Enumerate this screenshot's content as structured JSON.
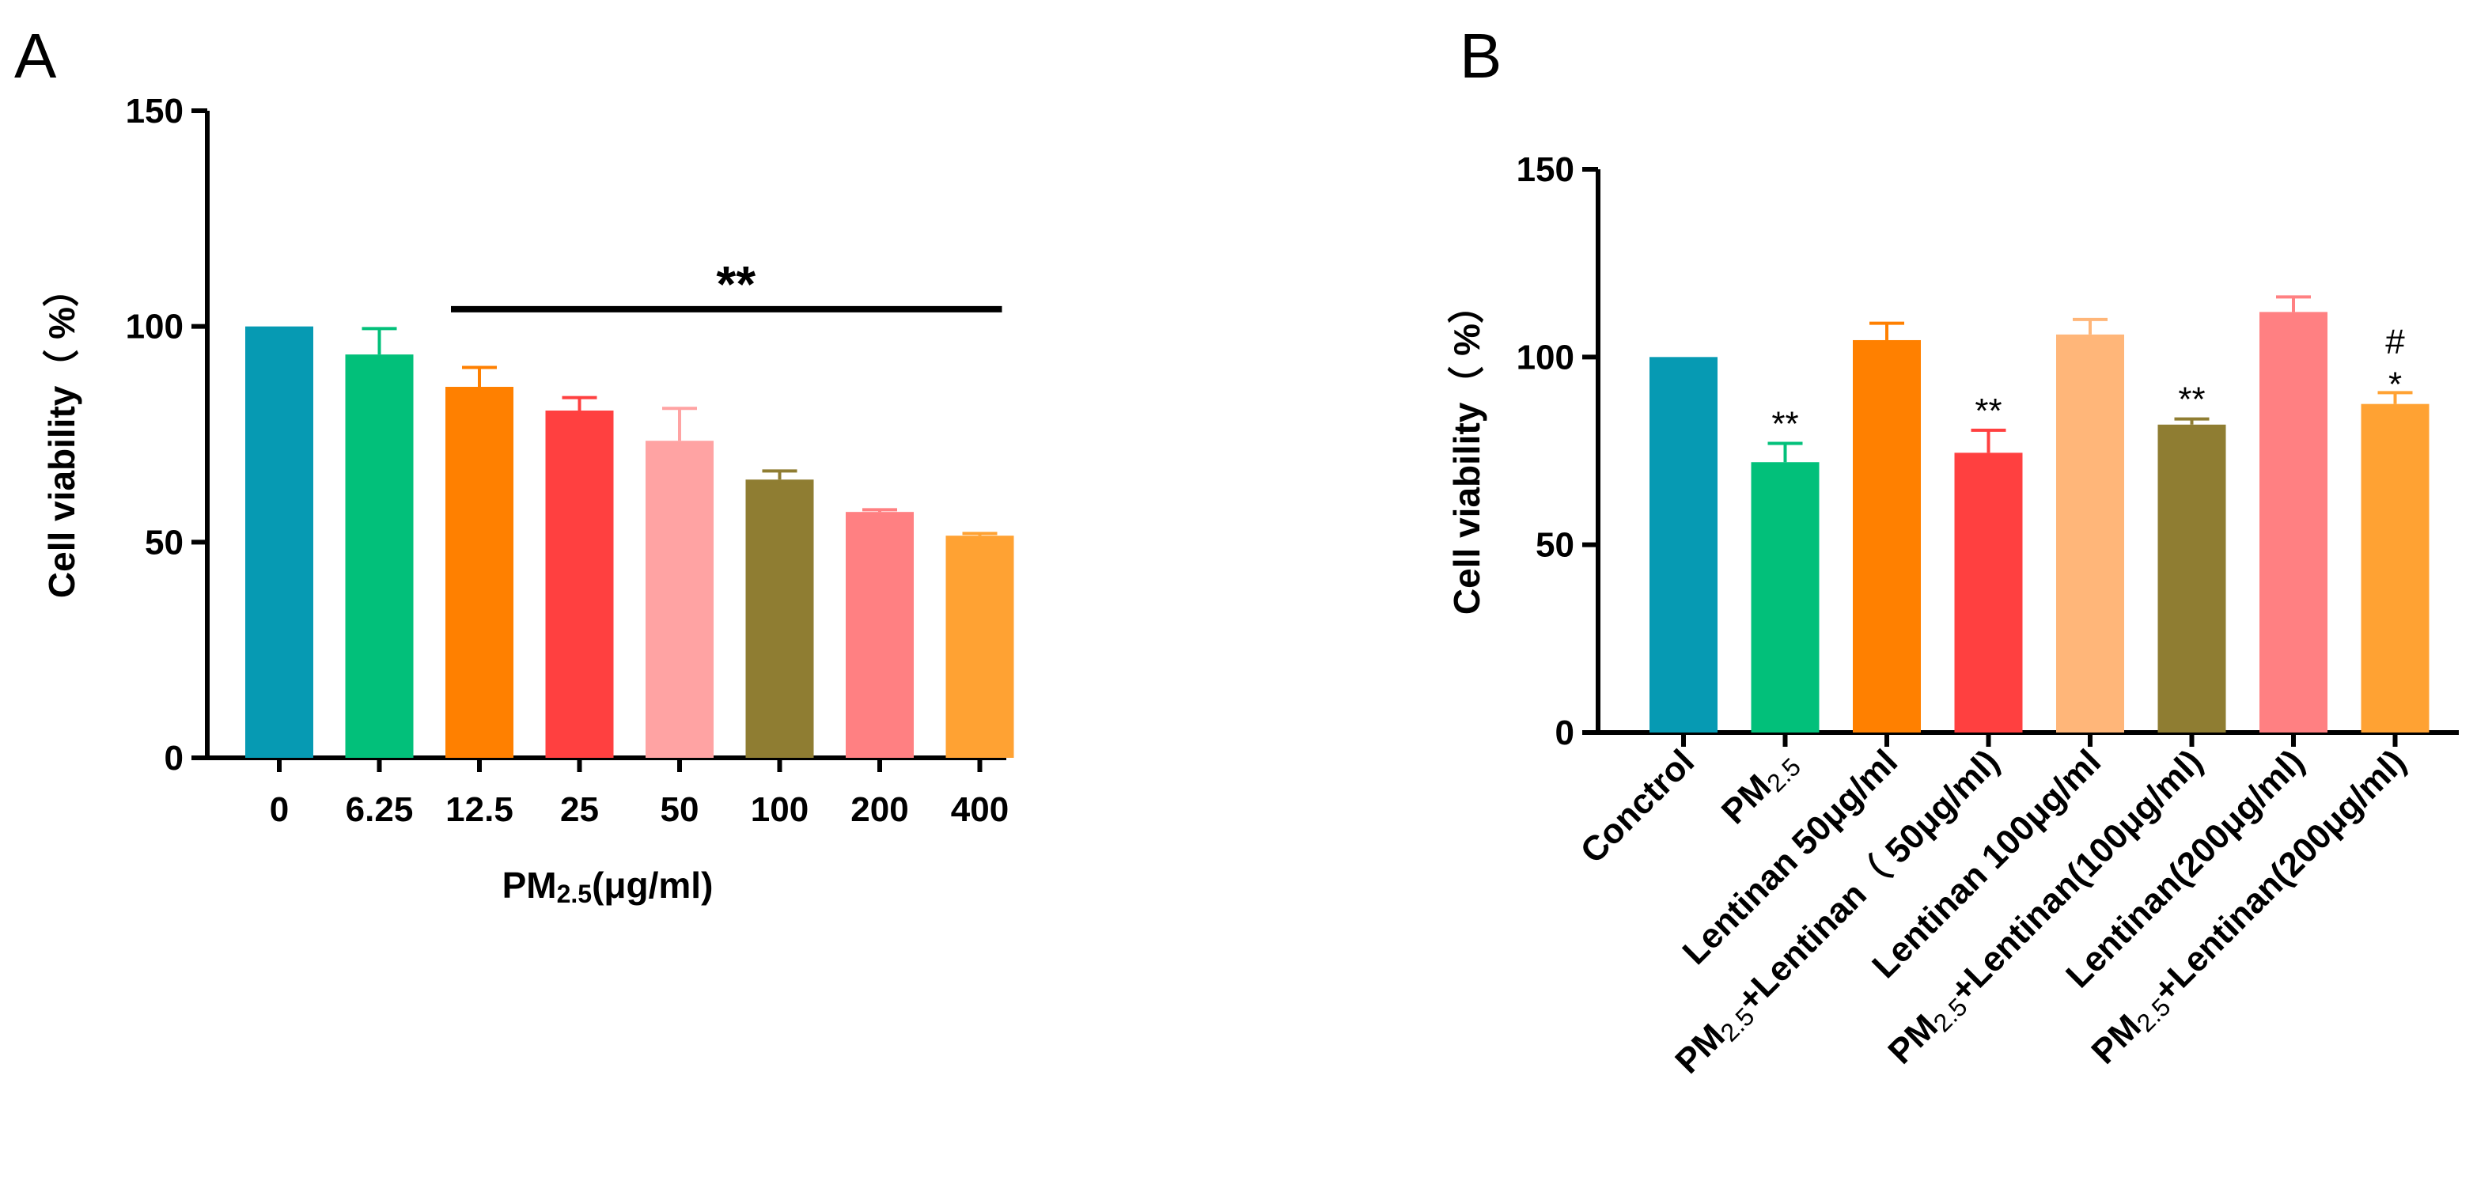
{
  "chart_data": [
    {
      "panel": "A",
      "type": "bar",
      "ylabel": "Cell viability（ %）",
      "xlabel": "PM2.5(μg/ml)",
      "xlabel_main": "PM",
      "xlabel_sub": "2.5",
      "xlabel_rest": "(μg/ml)",
      "ylim": [
        0,
        150
      ],
      "yticks": [
        0,
        50,
        100,
        150
      ],
      "categories": [
        "0",
        "6.25",
        "12.5",
        "25",
        "50",
        "100",
        "200",
        "400"
      ],
      "values": [
        100,
        93.5,
        86,
        80.5,
        73.5,
        64.5,
        57,
        51.5
      ],
      "errors": [
        0,
        6,
        4.5,
        3,
        7.5,
        2,
        0.5,
        0.5
      ],
      "colors": [
        "#069ab3",
        "#02c07a",
        "#ff8000",
        "#ff4040",
        "#ffa3a3",
        "#8f7d32",
        "#ff8082",
        "#ffa233"
      ],
      "significance_bar": {
        "from_category": "12.5",
        "to_category": "400",
        "label": "**",
        "y": 104
      }
    },
    {
      "panel": "B",
      "type": "bar",
      "ylabel": "Cell viability（ %）",
      "ylim": [
        0,
        150
      ],
      "yticks": [
        0,
        50,
        100,
        150
      ],
      "categories": [
        {
          "pre": "Conctrol",
          "sub": "",
          "post": ""
        },
        {
          "pre": "PM",
          "sub": "2.5",
          "post": ""
        },
        {
          "pre": "Lentinan 50μg/ml",
          "sub": "",
          "post": ""
        },
        {
          "pre": "PM",
          "sub": "2.5",
          "post": "+Lentinan（ 50μg/ml)"
        },
        {
          "pre": "Lentinan 100μg/ml",
          "sub": "",
          "post": ""
        },
        {
          "pre": "PM",
          "sub": "2.5",
          "post": "+Lentinan(100μg/ml)"
        },
        {
          "pre": "Lentinan(200μg/ml)",
          "sub": "",
          "post": ""
        },
        {
          "pre": "PM",
          "sub": "2.5",
          "post": "+Lentinan(200μg/ml)"
        }
      ],
      "values": [
        100,
        72,
        104.5,
        74.5,
        106,
        82,
        112,
        87.5
      ],
      "errors": [
        0,
        5,
        4.5,
        6,
        4,
        1.5,
        4,
        3
      ],
      "colors": [
        "#069ab3",
        "#02c07a",
        "#ff8000",
        "#ff4040",
        "#ffb679",
        "#8f7d32",
        "#ff8082",
        "#ffa233"
      ],
      "annotations": [
        "",
        "**",
        "",
        "**",
        "",
        "**",
        "",
        "#\n*"
      ]
    }
  ],
  "panel_labels": {
    "a": "A",
    "b": "B"
  }
}
